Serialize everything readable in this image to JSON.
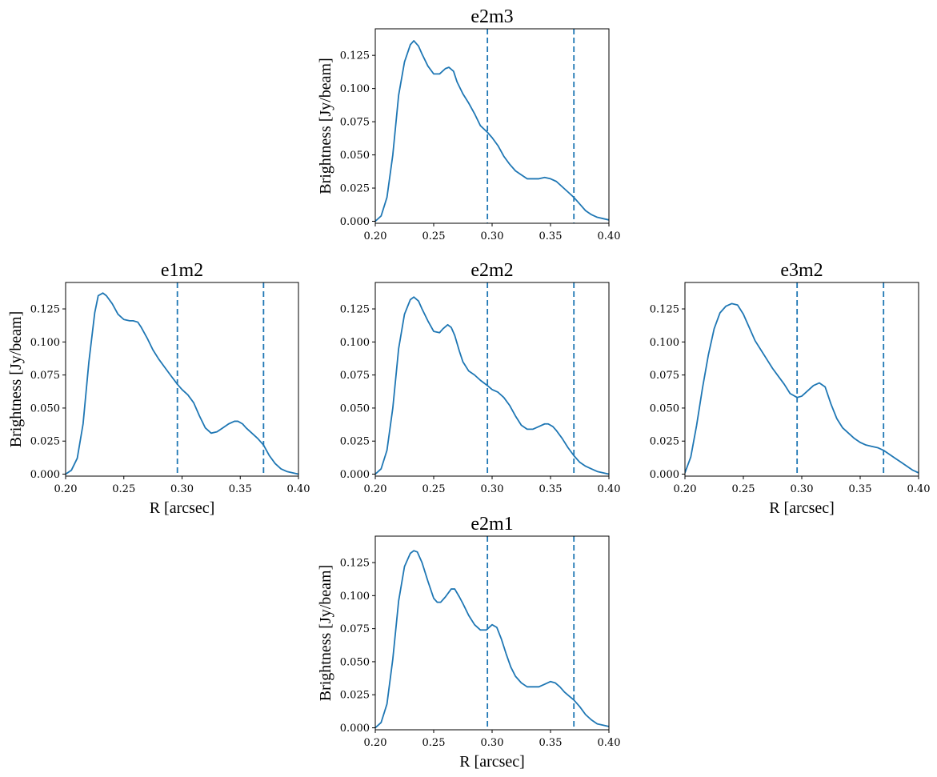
{
  "colors": {
    "line": "#1f77b4",
    "vline": "#1f77b4",
    "axes": "#000000"
  },
  "chart_data": [
    {
      "type": "line",
      "title": "e2m3",
      "xlabel": "",
      "ylabel": "Brightness [Jy/beam]",
      "xlim": [
        0.2,
        0.4
      ],
      "ylim": [
        -0.0015,
        0.145
      ],
      "xticks": [
        "0.20",
        "0.25",
        "0.30",
        "0.35",
        "0.40"
      ],
      "yticks": [
        "0.000",
        "0.025",
        "0.050",
        "0.075",
        "0.100",
        "0.125"
      ],
      "vlines": [
        0.296,
        0.37
      ],
      "series": [
        {
          "name": "e2m3",
          "x": [
            0.2,
            0.205,
            0.21,
            0.215,
            0.22,
            0.225,
            0.23,
            0.233,
            0.237,
            0.24,
            0.245,
            0.25,
            0.255,
            0.26,
            0.263,
            0.267,
            0.27,
            0.275,
            0.28,
            0.285,
            0.29,
            0.296,
            0.3,
            0.305,
            0.31,
            0.315,
            0.32,
            0.325,
            0.33,
            0.335,
            0.34,
            0.345,
            0.35,
            0.355,
            0.36,
            0.365,
            0.37,
            0.375,
            0.38,
            0.385,
            0.39,
            0.395,
            0.4
          ],
          "y": [
            0.0,
            0.004,
            0.018,
            0.05,
            0.095,
            0.12,
            0.133,
            0.136,
            0.132,
            0.126,
            0.117,
            0.111,
            0.111,
            0.115,
            0.116,
            0.113,
            0.105,
            0.096,
            0.089,
            0.081,
            0.072,
            0.067,
            0.063,
            0.057,
            0.049,
            0.043,
            0.038,
            0.035,
            0.032,
            0.032,
            0.032,
            0.033,
            0.032,
            0.03,
            0.026,
            0.022,
            0.018,
            0.013,
            0.008,
            0.005,
            0.003,
            0.002,
            0.001
          ]
        }
      ]
    },
    {
      "type": "line",
      "title": "e1m2",
      "xlabel": "R [arcsec]",
      "ylabel": "Brightness [Jy/beam]",
      "xlim": [
        0.2,
        0.4
      ],
      "ylim": [
        -0.0015,
        0.145
      ],
      "xticks": [
        "0.20",
        "0.25",
        "0.30",
        "0.35",
        "0.40"
      ],
      "yticks": [
        "0.000",
        "0.025",
        "0.050",
        "0.075",
        "0.100",
        "0.125"
      ],
      "vlines": [
        0.296,
        0.37
      ],
      "series": [
        {
          "name": "e1m2",
          "x": [
            0.2,
            0.205,
            0.21,
            0.215,
            0.22,
            0.225,
            0.228,
            0.232,
            0.235,
            0.24,
            0.245,
            0.25,
            0.255,
            0.258,
            0.262,
            0.265,
            0.27,
            0.275,
            0.28,
            0.285,
            0.29,
            0.296,
            0.3,
            0.305,
            0.31,
            0.315,
            0.32,
            0.325,
            0.33,
            0.335,
            0.34,
            0.345,
            0.348,
            0.352,
            0.355,
            0.36,
            0.365,
            0.37,
            0.375,
            0.38,
            0.385,
            0.39,
            0.395,
            0.4
          ],
          "y": [
            0.0,
            0.003,
            0.012,
            0.038,
            0.085,
            0.122,
            0.135,
            0.137,
            0.135,
            0.129,
            0.121,
            0.117,
            0.116,
            0.116,
            0.115,
            0.111,
            0.103,
            0.094,
            0.087,
            0.081,
            0.075,
            0.068,
            0.064,
            0.06,
            0.054,
            0.044,
            0.035,
            0.031,
            0.032,
            0.035,
            0.038,
            0.04,
            0.04,
            0.038,
            0.035,
            0.031,
            0.027,
            0.022,
            0.014,
            0.008,
            0.004,
            0.002,
            0.001,
            0.0
          ]
        }
      ]
    },
    {
      "type": "line",
      "title": "e2m2",
      "xlabel": "",
      "ylabel": "",
      "xlim": [
        0.2,
        0.4
      ],
      "ylim": [
        -0.0015,
        0.145
      ],
      "xticks": [
        "0.20",
        "0.25",
        "0.30",
        "0.35",
        "0.40"
      ],
      "yticks": [
        "0.000",
        "0.025",
        "0.050",
        "0.075",
        "0.100",
        "0.125"
      ],
      "vlines": [
        0.296,
        0.37
      ],
      "series": [
        {
          "name": "e2m2",
          "x": [
            0.2,
            0.205,
            0.21,
            0.215,
            0.22,
            0.225,
            0.23,
            0.233,
            0.237,
            0.24,
            0.245,
            0.25,
            0.255,
            0.258,
            0.262,
            0.265,
            0.268,
            0.272,
            0.275,
            0.28,
            0.285,
            0.29,
            0.296,
            0.3,
            0.305,
            0.31,
            0.315,
            0.32,
            0.325,
            0.33,
            0.335,
            0.34,
            0.345,
            0.348,
            0.352,
            0.355,
            0.36,
            0.365,
            0.37,
            0.375,
            0.38,
            0.385,
            0.39,
            0.395,
            0.4
          ],
          "y": [
            0.0,
            0.004,
            0.018,
            0.05,
            0.095,
            0.121,
            0.132,
            0.134,
            0.131,
            0.125,
            0.116,
            0.108,
            0.107,
            0.11,
            0.113,
            0.111,
            0.105,
            0.093,
            0.085,
            0.078,
            0.075,
            0.071,
            0.067,
            0.064,
            0.062,
            0.058,
            0.052,
            0.044,
            0.037,
            0.034,
            0.034,
            0.036,
            0.038,
            0.038,
            0.036,
            0.033,
            0.027,
            0.02,
            0.014,
            0.009,
            0.006,
            0.004,
            0.002,
            0.001,
            0.0
          ]
        }
      ]
    },
    {
      "type": "line",
      "title": "e3m2",
      "xlabel": "R [arcsec]",
      "ylabel": "",
      "xlim": [
        0.2,
        0.4
      ],
      "ylim": [
        -0.0015,
        0.145
      ],
      "xticks": [
        "0.20",
        "0.25",
        "0.30",
        "0.35",
        "0.40"
      ],
      "yticks": [
        "0.000",
        "0.025",
        "0.050",
        "0.075",
        "0.100",
        "0.125"
      ],
      "vlines": [
        0.296,
        0.37
      ],
      "series": [
        {
          "name": "e3m2",
          "x": [
            0.2,
            0.205,
            0.21,
            0.215,
            0.22,
            0.225,
            0.23,
            0.235,
            0.24,
            0.245,
            0.25,
            0.255,
            0.26,
            0.265,
            0.27,
            0.275,
            0.28,
            0.285,
            0.29,
            0.296,
            0.3,
            0.305,
            0.31,
            0.315,
            0.32,
            0.325,
            0.33,
            0.335,
            0.34,
            0.345,
            0.35,
            0.355,
            0.36,
            0.365,
            0.37,
            0.375,
            0.38,
            0.385,
            0.39,
            0.395,
            0.4
          ],
          "y": [
            0.001,
            0.013,
            0.037,
            0.065,
            0.09,
            0.11,
            0.122,
            0.127,
            0.129,
            0.128,
            0.121,
            0.111,
            0.101,
            0.094,
            0.087,
            0.08,
            0.074,
            0.068,
            0.061,
            0.058,
            0.059,
            0.063,
            0.067,
            0.069,
            0.066,
            0.053,
            0.042,
            0.035,
            0.031,
            0.027,
            0.024,
            0.022,
            0.021,
            0.02,
            0.018,
            0.015,
            0.012,
            0.009,
            0.006,
            0.003,
            0.001
          ]
        }
      ]
    },
    {
      "type": "line",
      "title": "e2m1",
      "xlabel": "R [arcsec]",
      "ylabel": "Brightness [Jy/beam]",
      "xlim": [
        0.2,
        0.4
      ],
      "ylim": [
        -0.0015,
        0.145
      ],
      "xticks": [
        "0.20",
        "0.25",
        "0.30",
        "0.35",
        "0.40"
      ],
      "yticks": [
        "0.000",
        "0.025",
        "0.050",
        "0.075",
        "0.100",
        "0.125"
      ],
      "vlines": [
        0.296,
        0.37
      ],
      "series": [
        {
          "name": "e2m1",
          "x": [
            0.2,
            0.205,
            0.21,
            0.215,
            0.22,
            0.225,
            0.23,
            0.233,
            0.236,
            0.24,
            0.245,
            0.25,
            0.253,
            0.256,
            0.26,
            0.265,
            0.268,
            0.272,
            0.275,
            0.28,
            0.285,
            0.29,
            0.295,
            0.3,
            0.304,
            0.308,
            0.312,
            0.316,
            0.32,
            0.325,
            0.33,
            0.335,
            0.34,
            0.345,
            0.35,
            0.354,
            0.358,
            0.362,
            0.366,
            0.37,
            0.375,
            0.38,
            0.385,
            0.39,
            0.395,
            0.4
          ],
          "y": [
            0.0,
            0.004,
            0.018,
            0.052,
            0.096,
            0.122,
            0.132,
            0.134,
            0.133,
            0.125,
            0.111,
            0.098,
            0.095,
            0.095,
            0.099,
            0.105,
            0.105,
            0.099,
            0.094,
            0.085,
            0.078,
            0.074,
            0.074,
            0.078,
            0.076,
            0.067,
            0.056,
            0.046,
            0.039,
            0.034,
            0.031,
            0.031,
            0.031,
            0.033,
            0.035,
            0.034,
            0.031,
            0.027,
            0.024,
            0.021,
            0.016,
            0.01,
            0.006,
            0.003,
            0.002,
            0.001
          ]
        }
      ]
    }
  ]
}
